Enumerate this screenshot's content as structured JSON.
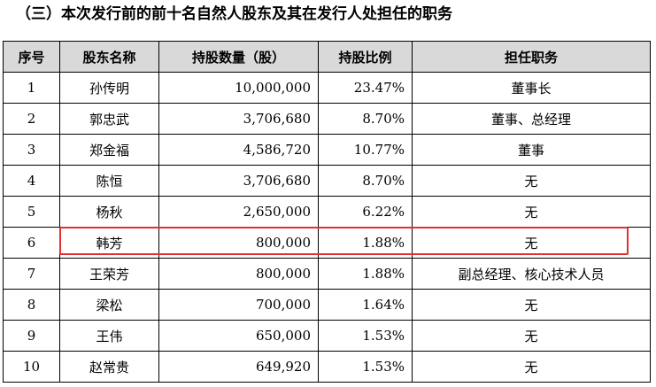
{
  "title": "（三）本次发行前的前十名自然人股东及其在发行人处担任的职务",
  "table": {
    "headers": [
      "序号",
      "股东名称",
      "持股数量（股）",
      "持股比例",
      "担任职务"
    ],
    "rows": [
      {
        "no": "1",
        "name": "孙传明",
        "shares": "10,000,000",
        "ratio": "23.47%",
        "position": "董事长"
      },
      {
        "no": "2",
        "name": "郭忠武",
        "shares": "3,706,680",
        "ratio": "8.70%",
        "position": "董事、总经理"
      },
      {
        "no": "3",
        "name": "郑金福",
        "shares": "4,586,720",
        "ratio": "10.77%",
        "position": "董事"
      },
      {
        "no": "4",
        "name": "陈恒",
        "shares": "3,706,680",
        "ratio": "8.70%",
        "position": "无"
      },
      {
        "no": "5",
        "name": "杨秋",
        "shares": "2,650,000",
        "ratio": "6.22%",
        "position": "无"
      },
      {
        "no": "6",
        "name": "韩芳",
        "shares": "800,000",
        "ratio": "1.88%",
        "position": "无"
      },
      {
        "no": "7",
        "name": "王荣芳",
        "shares": "800,000",
        "ratio": "1.88%",
        "position": "副总经理、核心技术人员"
      },
      {
        "no": "8",
        "name": "梁松",
        "shares": "700,000",
        "ratio": "1.64%",
        "position": "无"
      },
      {
        "no": "9",
        "name": "王伟",
        "shares": "650,000",
        "ratio": "1.53%",
        "position": "无"
      },
      {
        "no": "10",
        "name": "赵常贵",
        "shares": "649,920",
        "ratio": "1.53%",
        "position": "无"
      }
    ]
  },
  "highlight": {
    "color": "#e3302f",
    "row_index": 5
  }
}
